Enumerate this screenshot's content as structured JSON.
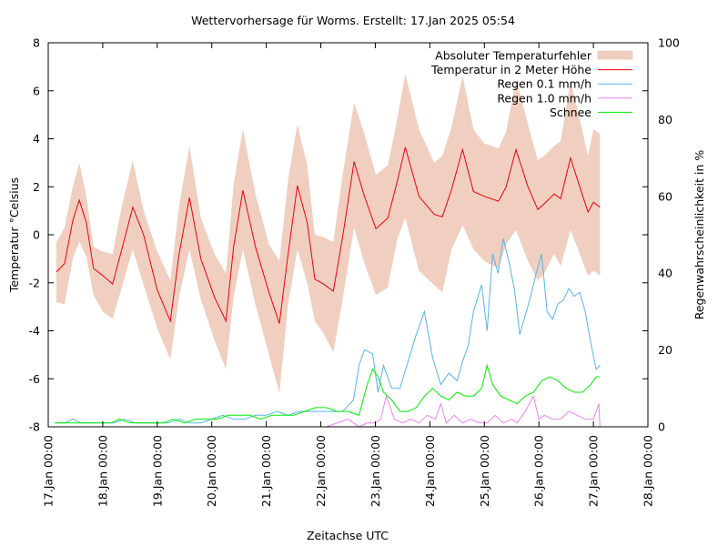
{
  "chart_data": {
    "type": "line",
    "title": "Wettervorhersage für Worms. Erstellt: 17.Jan 2025 05:54",
    "xlabel": "Zeitachse UTC",
    "ylabel": "Temperatur °Celsius",
    "y2label": "Regenwahrscheinlichkeit in %",
    "grid": false,
    "legend_position": "top-right",
    "x_unit": "days since 17.Jan 00:00 UTC",
    "xlim": [
      0,
      11
    ],
    "ylim": [
      -8,
      8
    ],
    "y2lim": [
      0,
      100
    ],
    "x_ticks": [
      "17.Jan 00:00",
      "18.Jan 00:00",
      "19.Jan 00:00",
      "20.Jan 00:00",
      "21.Jan 00:00",
      "22.Jan 00:00",
      "23.Jan 00:00",
      "24.Jan 00:00",
      "25.Jan 00:00",
      "26.Jan 00:00",
      "27.Jan 00:00",
      "28.Jan 00:00"
    ],
    "y_ticks": [
      "-8",
      "-6",
      "-4",
      "-2",
      "0",
      "2",
      "4",
      "6",
      "8"
    ],
    "y2_ticks": [
      "0",
      "20",
      "40",
      "60",
      "80",
      "100"
    ],
    "colors": {
      "error_band": "#f0cfc0",
      "temperature": "#e8000b",
      "rain01": "#56b4e9",
      "rain10": "#ee82ee",
      "snow": "#00ee00",
      "axis": "#000000"
    },
    "legend": [
      {
        "key": "error_band",
        "label": "Absoluter Temperaturfehler",
        "kind": "box"
      },
      {
        "key": "temperature",
        "label": "Temperatur in 2 Meter Höhe",
        "kind": "line"
      },
      {
        "key": "rain01",
        "label": "Regen 0.1 mm/h",
        "kind": "line"
      },
      {
        "key": "rain10",
        "label": "Regen 1.0 mm/h",
        "kind": "line"
      },
      {
        "key": "snow",
        "label": "Schnee",
        "kind": "line"
      }
    ],
    "temperature": {
      "axis": "y",
      "x": [
        0.15,
        0.3,
        0.45,
        0.57,
        0.7,
        0.83,
        1.0,
        1.18,
        1.35,
        1.55,
        1.75,
        2.0,
        2.24,
        2.4,
        2.59,
        2.8,
        3.05,
        3.26,
        3.4,
        3.57,
        3.8,
        4.05,
        4.24,
        4.4,
        4.57,
        4.75,
        4.89,
        5.05,
        5.23,
        5.4,
        5.61,
        5.8,
        6.01,
        6.23,
        6.4,
        6.55,
        6.8,
        7.08,
        7.23,
        7.4,
        7.6,
        7.8,
        8.0,
        8.26,
        8.4,
        8.58,
        8.8,
        8.98,
        9.1,
        9.28,
        9.4,
        9.58,
        9.75,
        9.9,
        10.0,
        10.12
      ],
      "values": [
        -1.55,
        -1.2,
        0.6,
        1.45,
        0.5,
        -1.4,
        -1.7,
        -2.05,
        -0.6,
        1.15,
        0.0,
        -2.3,
        -3.6,
        -0.8,
        1.55,
        -1.0,
        -2.6,
        -3.6,
        -0.5,
        1.85,
        -0.5,
        -2.4,
        -3.7,
        -0.8,
        2.05,
        0.5,
        -1.85,
        -2.05,
        -2.35,
        -0.1,
        3.05,
        1.6,
        0.25,
        0.7,
        2.2,
        3.65,
        1.6,
        0.85,
        0.75,
        1.9,
        3.55,
        1.8,
        1.6,
        1.4,
        2.0,
        3.55,
        2.0,
        1.05,
        1.3,
        1.7,
        1.5,
        3.2,
        2.0,
        0.95,
        1.35,
        1.15
      ]
    },
    "error_band": {
      "axis": "y",
      "x": [
        0.15,
        0.3,
        0.45,
        0.57,
        0.7,
        0.83,
        1.0,
        1.18,
        1.35,
        1.55,
        1.75,
        2.0,
        2.24,
        2.4,
        2.59,
        2.8,
        3.05,
        3.26,
        3.4,
        3.57,
        3.8,
        4.05,
        4.24,
        4.4,
        4.57,
        4.75,
        4.89,
        5.05,
        5.23,
        5.4,
        5.61,
        5.8,
        6.01,
        6.23,
        6.4,
        6.55,
        6.8,
        7.08,
        7.23,
        7.4,
        7.6,
        7.8,
        8.0,
        8.26,
        8.4,
        8.58,
        8.8,
        8.98,
        9.1,
        9.28,
        9.4,
        9.58,
        9.75,
        9.9,
        10.0,
        10.12
      ],
      "upper": [
        -0.3,
        0.3,
        2.0,
        3.0,
        1.6,
        -0.5,
        -0.7,
        -0.8,
        1.2,
        3.1,
        1.0,
        -0.7,
        -1.9,
        1.2,
        3.7,
        0.7,
        -0.8,
        -1.6,
        2.1,
        4.4,
        1.7,
        -0.4,
        -1.1,
        2.3,
        4.6,
        2.9,
        0.0,
        -0.1,
        -0.3,
        2.5,
        5.5,
        4.2,
        2.5,
        2.9,
        4.8,
        6.7,
        4.4,
        3.0,
        3.3,
        4.5,
        6.6,
        4.4,
        3.8,
        3.6,
        4.3,
        6.5,
        4.6,
        3.1,
        3.3,
        3.7,
        3.9,
        6.4,
        4.8,
        3.3,
        4.4,
        4.2
      ],
      "lower": [
        -2.8,
        -2.9,
        -1.0,
        -0.3,
        -0.9,
        -2.5,
        -3.2,
        -3.5,
        -2.2,
        -0.6,
        -2.1,
        -3.9,
        -5.2,
        -2.6,
        -0.6,
        -2.7,
        -4.4,
        -5.6,
        -2.6,
        -0.6,
        -2.9,
        -5.0,
        -6.6,
        -2.9,
        -0.6,
        -2.0,
        -3.6,
        -4.1,
        -4.9,
        -2.7,
        0.3,
        -1.2,
        -2.5,
        -2.2,
        -0.2,
        0.7,
        -1.5,
        -2.1,
        -2.4,
        -0.6,
        0.4,
        -0.6,
        -1.1,
        -1.4,
        -0.4,
        0.2,
        -1.1,
        -1.9,
        -1.6,
        -0.8,
        -1.3,
        0.2,
        -0.8,
        -1.7,
        -1.5,
        -1.7
      ]
    },
    "rain01": {
      "axis": "y2",
      "x": [
        0.12,
        0.3,
        0.45,
        0.6,
        0.8,
        1.0,
        1.2,
        1.4,
        1.6,
        1.8,
        2.0,
        2.2,
        2.4,
        2.6,
        2.8,
        3.0,
        3.2,
        3.4,
        3.6,
        3.8,
        4.0,
        4.2,
        4.4,
        4.6,
        4.8,
        5.0,
        5.2,
        5.4,
        5.6,
        5.7,
        5.8,
        5.95,
        6.05,
        6.15,
        6.3,
        6.45,
        6.6,
        6.75,
        6.9,
        7.05,
        7.2,
        7.35,
        7.5,
        7.6,
        7.7,
        7.8,
        7.95,
        8.05,
        8.15,
        8.25,
        8.35,
        8.45,
        8.55,
        8.65,
        8.75,
        8.85,
        8.95,
        9.05,
        9.15,
        9.25,
        9.35,
        9.45,
        9.55,
        9.65,
        9.75,
        9.85,
        9.95,
        10.05,
        10.12
      ],
      "values": [
        1,
        1,
        2,
        1,
        1,
        1,
        1,
        2,
        1,
        1,
        1,
        1,
        2,
        1,
        1,
        2,
        3,
        2,
        2,
        3,
        3,
        4,
        3,
        4,
        4,
        4,
        4,
        4,
        7,
        16,
        20,
        19,
        9,
        16,
        10,
        10,
        17,
        24,
        30,
        18,
        11,
        14,
        12,
        17,
        21,
        30,
        37,
        25,
        45,
        40,
        49,
        43,
        36,
        24,
        29,
        34,
        40,
        45,
        30,
        28,
        32,
        33,
        36,
        34,
        35,
        30,
        22,
        15,
        16
      ]
    },
    "rain10": {
      "axis": "y2",
      "x": [
        5.1,
        5.3,
        5.5,
        5.7,
        5.85,
        6.0,
        6.1,
        6.2,
        6.35,
        6.5,
        6.65,
        6.8,
        6.95,
        7.1,
        7.2,
        7.3,
        7.45,
        7.6,
        7.75,
        7.9,
        8.05,
        8.2,
        8.35,
        8.5,
        8.6,
        8.75,
        8.9,
        9.0,
        9.1,
        9.25,
        9.4,
        9.55,
        9.7,
        9.85,
        10.0,
        10.1,
        10.12
      ],
      "values": [
        0,
        1,
        2,
        0,
        1,
        1,
        2,
        8,
        2,
        1,
        2,
        1,
        3,
        2,
        6,
        1,
        3,
        1,
        2,
        1,
        1,
        3,
        1,
        2,
        1,
        4,
        8,
        2,
        3,
        2,
        2,
        4,
        3,
        2,
        2,
        6,
        0
      ]
    },
    "snow": {
      "axis": "y2",
      "x": [
        0.12,
        0.35,
        0.55,
        0.75,
        0.95,
        1.15,
        1.3,
        1.5,
        1.7,
        1.9,
        2.1,
        2.3,
        2.5,
        2.7,
        2.9,
        3.1,
        3.3,
        3.5,
        3.7,
        3.9,
        4.1,
        4.3,
        4.5,
        4.7,
        4.9,
        5.1,
        5.3,
        5.5,
        5.7,
        5.85,
        5.95,
        6.05,
        6.15,
        6.3,
        6.45,
        6.6,
        6.75,
        6.9,
        7.05,
        7.2,
        7.35,
        7.5,
        7.65,
        7.8,
        7.95,
        8.05,
        8.15,
        8.3,
        8.45,
        8.6,
        8.75,
        8.9,
        9.05,
        9.2,
        9.35,
        9.5,
        9.65,
        9.8,
        9.95,
        10.05,
        10.12
      ],
      "values": [
        1,
        1,
        1,
        1,
        1,
        1,
        2,
        1,
        1,
        1,
        1,
        2,
        1,
        2,
        2,
        2,
        3,
        3,
        3,
        2,
        3,
        3,
        3,
        4,
        5,
        5,
        4,
        4,
        3,
        11,
        15,
        13,
        9,
        7,
        4,
        4,
        5,
        8,
        10,
        8,
        7,
        9,
        8,
        8,
        10,
        16,
        11,
        8,
        7,
        6,
        8,
        9,
        12,
        13,
        12,
        10,
        9,
        9,
        11,
        13,
        13
      ]
    }
  }
}
